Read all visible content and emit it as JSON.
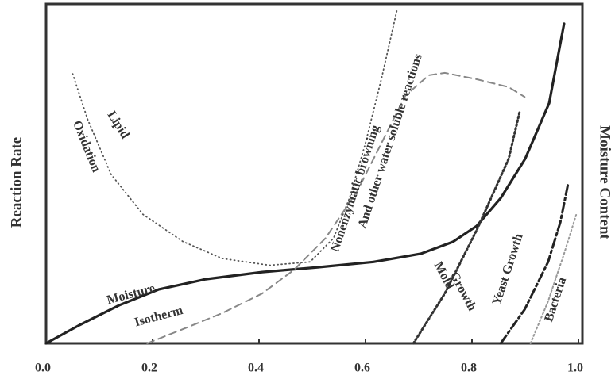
{
  "chart_data": {
    "type": "line",
    "ylabel": "Reaction Rate",
    "y2label": "Moisture Content",
    "xlim": [
      0,
      1
    ],
    "ylim": [
      0,
      100
    ],
    "xticks": [
      {
        "value": 0,
        "label": "0.0"
      },
      0.2,
      0.4,
      0.6,
      0.8,
      {
        "value": 1,
        "label": "1.0"
      }
    ],
    "series": [
      {
        "labels": [
          "Moisture",
          "Isotherm"
        ],
        "color": "#222222",
        "dash": "none",
        "width": 3.2,
        "x": [
          0,
          0.063,
          0.137,
          0.212,
          0.3,
          0.406,
          0.51,
          0.615,
          0.704,
          0.764,
          0.809,
          0.854,
          0.9,
          0.945,
          0.973
        ],
        "values": [
          0,
          5.4,
          11.2,
          15.9,
          18.9,
          21,
          22.4,
          24,
          26.4,
          29.9,
          34.6,
          42.8,
          54.4,
          70.8,
          94.2
        ]
      },
      {
        "labels": [
          "Lipid",
          "Oxidation"
        ],
        "color": "#555555",
        "dash": "1 4",
        "width": 1.8,
        "x": [
          0.05,
          0.078,
          0.122,
          0.182,
          0.257,
          0.331,
          0.42,
          0.496,
          0.54,
          0.57,
          0.6,
          0.63,
          0.66
        ],
        "values": [
          79.4,
          66,
          49.8,
          38,
          30,
          25,
          23,
          24,
          31,
          42.8,
          59,
          78,
          98.8
        ]
      },
      {
        "labels": [
          "Nonenzymatic browning",
          "And other water soluble reactions"
        ],
        "color": "#888888",
        "dash": "9 6",
        "width": 2,
        "x": [
          0.19,
          0.257,
          0.331,
          0.406,
          0.466,
          0.525,
          0.585,
          0.63,
          0.675,
          0.719,
          0.749,
          0.809,
          0.869,
          0.899
        ],
        "values": [
          0,
          4.2,
          8.9,
          14.7,
          21.7,
          31,
          45,
          59,
          73,
          79,
          79.7,
          77.8,
          75.5,
          72.6
        ]
      },
      {
        "labels": [
          "Mold",
          "Growth"
        ],
        "color": "#333333",
        "dash": "2 3",
        "width": 3,
        "x": [
          0.69,
          0.749,
          0.809,
          0.869,
          0.89
        ],
        "values": [
          0,
          14.7,
          33.4,
          54.4,
          68.5
        ]
      },
      {
        "labels": [
          "Yeast Growth"
        ],
        "color": "#222222",
        "dash": "12 4 3 4",
        "width": 3,
        "x": [
          0.854,
          0.899,
          0.943,
          0.966,
          0.981
        ],
        "values": [
          0,
          10,
          24,
          35.7,
          47.4
        ]
      },
      {
        "labels": [
          "Bacteria"
        ],
        "color": "#999999",
        "dash": "2 3",
        "width": 2,
        "x": [
          0.91,
          0.943,
          0.973,
          0.996
        ],
        "values": [
          0,
          12.4,
          26.4,
          38
        ]
      }
    ]
  }
}
